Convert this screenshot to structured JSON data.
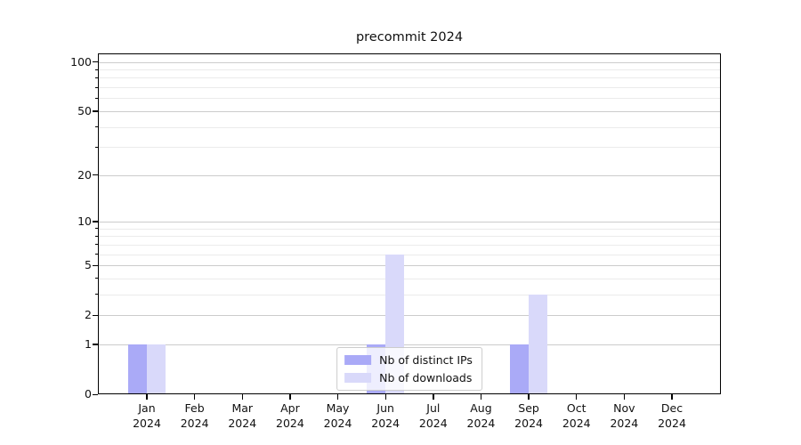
{
  "title": "precommit 2024",
  "colors": {
    "distinct_ips_bar": "#aaaaf7",
    "downloads_bar": "#d9d9fa",
    "grid_major": "#cccccc",
    "grid_minor": "#ebebeb",
    "axis_frame": "#000000",
    "legend_border": "#cccccc"
  },
  "chart_data": {
    "type": "bar",
    "title": "precommit 2024",
    "x_months": [
      "Jan",
      "Feb",
      "Mar",
      "Apr",
      "May",
      "Jun",
      "Jul",
      "Aug",
      "Sep",
      "Oct",
      "Nov",
      "Dec"
    ],
    "x_year": "2024",
    "categories": [
      "Jan 2024",
      "Feb 2024",
      "Mar 2024",
      "Apr 2024",
      "May 2024",
      "Jun 2024",
      "Jul 2024",
      "Aug 2024",
      "Sep 2024",
      "Oct 2024",
      "Nov 2024",
      "Dec 2024"
    ],
    "series": [
      {
        "name": "Nb of distinct IPs",
        "values": [
          1,
          0,
          0,
          0,
          0,
          1,
          0,
          0,
          1,
          0,
          0,
          0
        ]
      },
      {
        "name": "Nb of downloads",
        "values": [
          1,
          0,
          0,
          0,
          0,
          6,
          0,
          0,
          3,
          0,
          0,
          0
        ]
      }
    ],
    "y_scale": "log1p",
    "y_major_ticks": [
      0,
      1,
      2,
      5,
      10,
      20,
      50,
      100
    ],
    "y_minor_ticks": [
      3,
      4,
      6,
      7,
      8,
      9,
      30,
      40,
      60,
      70,
      80,
      90
    ],
    "ylim": [
      0,
      100
    ],
    "grid": true,
    "legend_position": "lower center"
  }
}
